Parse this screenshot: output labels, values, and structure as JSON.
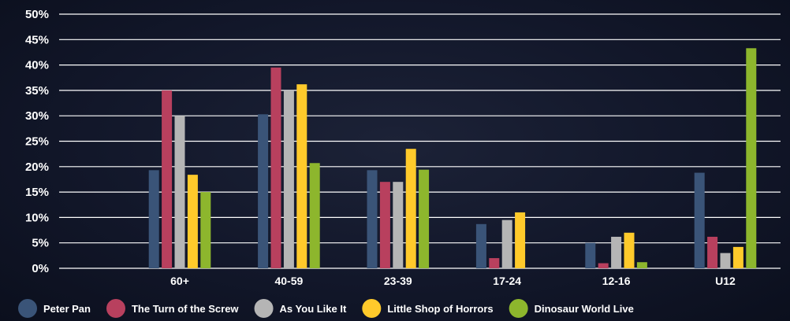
{
  "chart_data": {
    "type": "bar",
    "categories": [
      "60+",
      "40-59",
      "23-39",
      "17-24",
      "12-16",
      "U12"
    ],
    "y_ticks": [
      "0%",
      "5%",
      "10%",
      "15%",
      "20%",
      "25%",
      "30%",
      "35%",
      "40%",
      "45%",
      "50%"
    ],
    "ylim": [
      0,
      50
    ],
    "grid": true,
    "legend_position": "bottom",
    "series": [
      {
        "name": "Peter Pan",
        "color": "#3a5478",
        "values": [
          19.3,
          30.3,
          19.3,
          8.7,
          5.0,
          18.8
        ]
      },
      {
        "name": "The Turn of the Screw",
        "color": "#b8405e",
        "values": [
          35.0,
          39.5,
          17.0,
          2.0,
          1.0,
          6.2
        ]
      },
      {
        "name": "As You Like It",
        "color": "#b5b5b5",
        "values": [
          30.0,
          35.0,
          17.0,
          9.5,
          6.2,
          3.0
        ]
      },
      {
        "name": "Little Shop of Horrors",
        "color": "#ffca2b",
        "values": [
          18.4,
          36.2,
          23.5,
          11.0,
          7.0,
          4.2
        ]
      },
      {
        "name": "Dinosaur World Live",
        "color": "#8db62d",
        "values": [
          15.0,
          20.7,
          19.4,
          0,
          1.2,
          43.3
        ]
      }
    ]
  }
}
